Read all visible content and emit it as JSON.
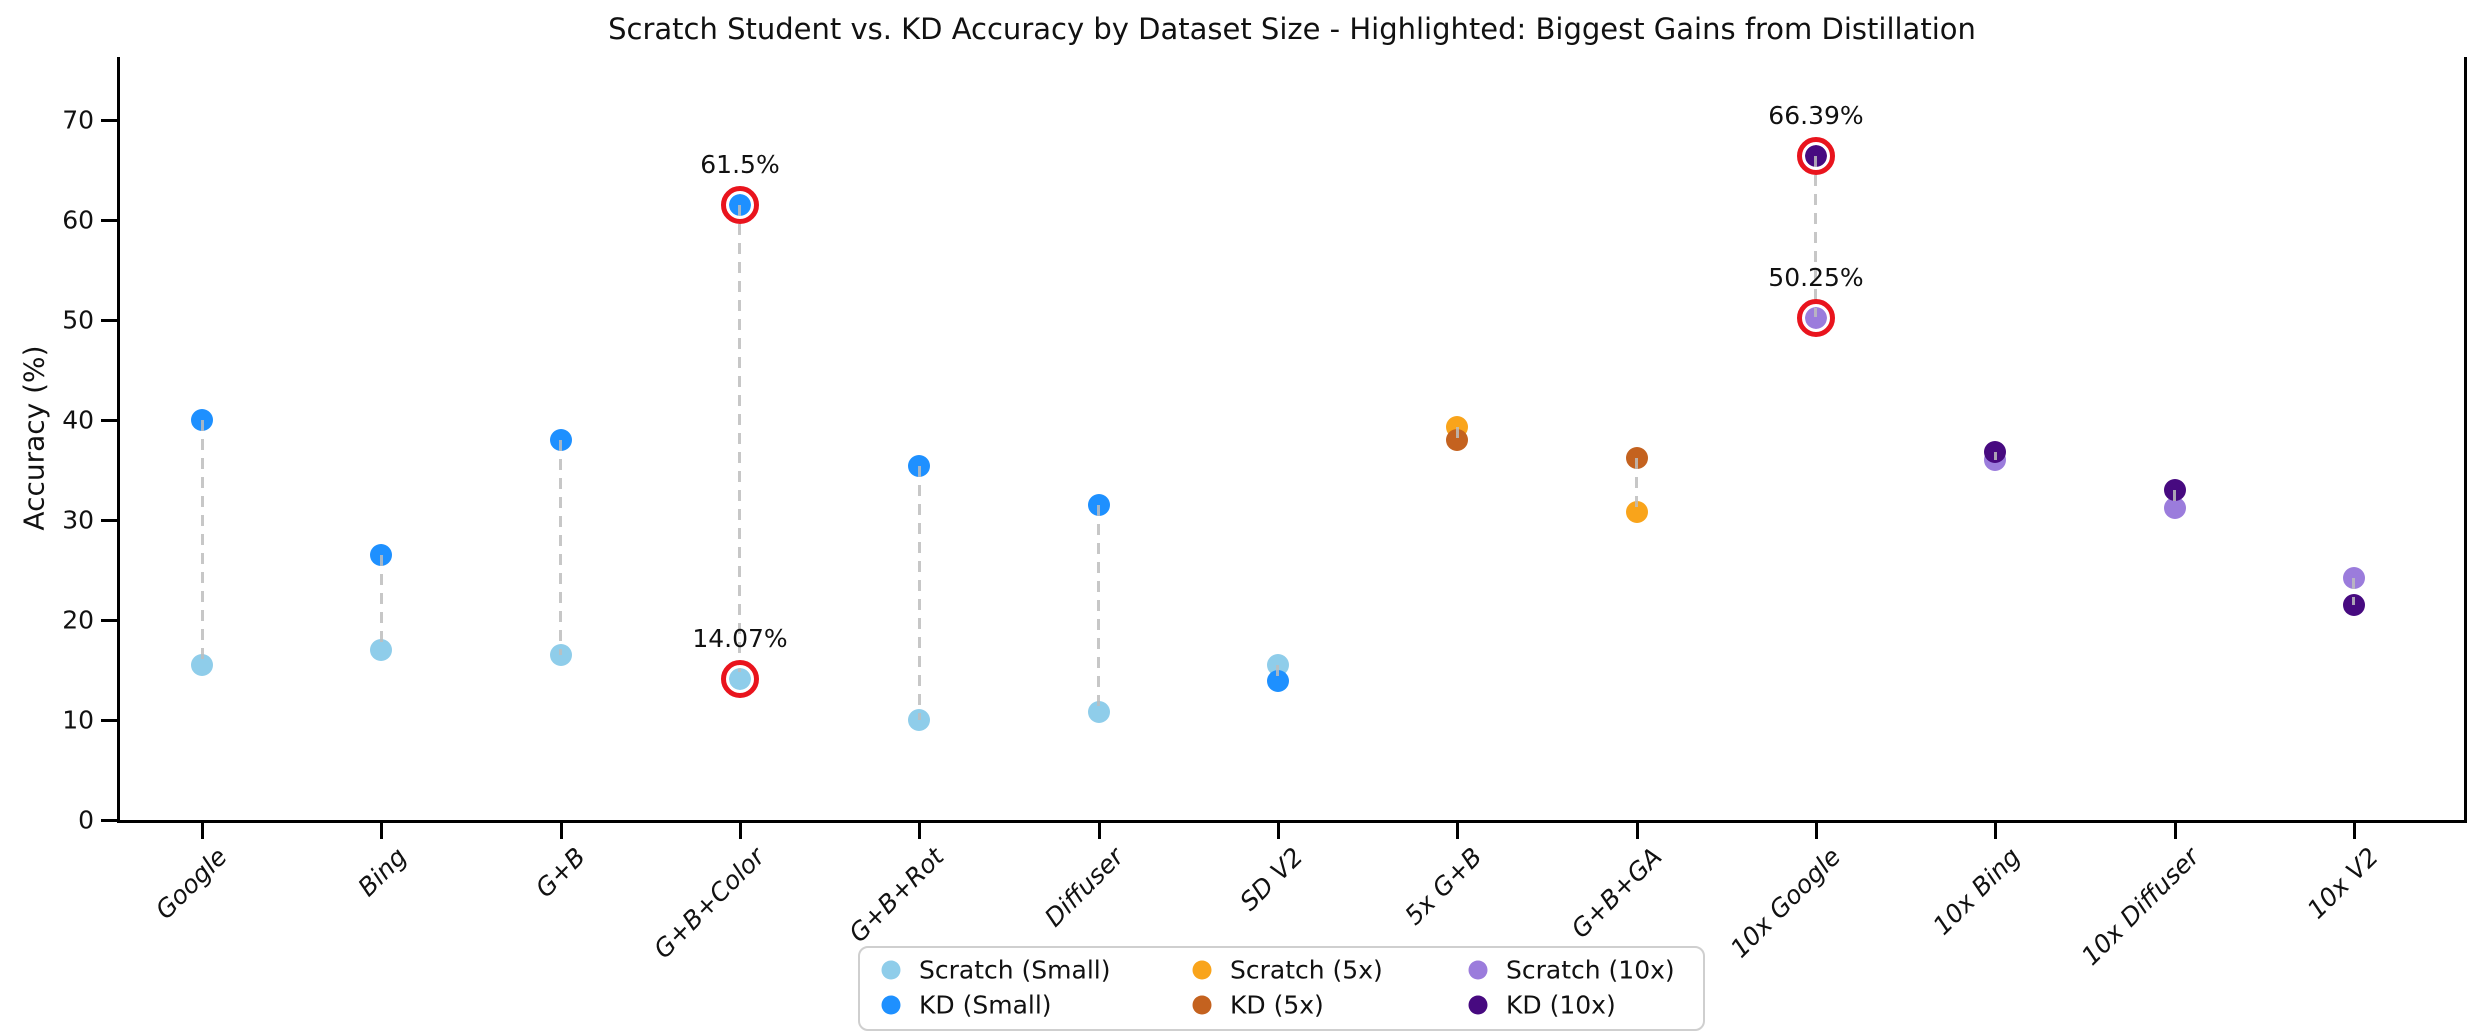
{
  "title": "Scratch Student vs. KD Accuracy by Dataset Size - Highlighted: Biggest Gains from Distillation",
  "chart_data": {
    "type": "scatter",
    "title": "Scratch Student vs. KD Accuracy by Dataset Size - Highlighted: Biggest Gains from Distillation",
    "xlabel": "",
    "ylabel": "Accuracy (%)",
    "ylim": [
      0,
      76
    ],
    "yticks": [
      0,
      10,
      20,
      30,
      40,
      50,
      60,
      70
    ],
    "grid": false,
    "legend_position": "bottom-center",
    "categories": [
      "Google",
      "Bing",
      "G+B",
      "G+B+Color",
      "G+B+Rot",
      "Diffuser",
      "SD V2",
      "5x G+B",
      "G+B+GA",
      "10x Google",
      "10x Bing",
      "10x Diffuser",
      "10x V2"
    ],
    "series": [
      {
        "name": "Scratch (Small)",
        "color": "#8FCDEA",
        "values": [
          15.5,
          17.0,
          16.5,
          14.07,
          10.0,
          10.8,
          15.5,
          null,
          null,
          null,
          null,
          null,
          null
        ]
      },
      {
        "name": "KD (Small)",
        "color": "#1E90FF",
        "values": [
          40.0,
          26.5,
          38.0,
          61.5,
          35.4,
          31.5,
          13.9,
          null,
          null,
          null,
          null,
          null,
          null
        ]
      },
      {
        "name": "Scratch (5x)",
        "color": "#F9A41B",
        "values": [
          null,
          null,
          null,
          null,
          null,
          null,
          null,
          39.3,
          30.8,
          null,
          null,
          null,
          null
        ]
      },
      {
        "name": "KD (5x)",
        "color": "#C4621F",
        "values": [
          null,
          null,
          null,
          null,
          null,
          null,
          null,
          38.0,
          36.2,
          null,
          null,
          null,
          null
        ]
      },
      {
        "name": "Scratch (10x)",
        "color": "#9B7CDC",
        "values": [
          null,
          null,
          null,
          null,
          null,
          null,
          null,
          null,
          null,
          50.25,
          36.0,
          31.2,
          24.2
        ]
      },
      {
        "name": "KD (10x)",
        "color": "#470A80",
        "values": [
          null,
          null,
          null,
          null,
          null,
          null,
          null,
          null,
          null,
          66.39,
          36.8,
          33.0,
          21.5
        ]
      }
    ],
    "connector_color": "#BDBDBD",
    "highlight_color": "#E9141D",
    "annotations": [
      {
        "category": "G+B+Color",
        "series": "KD (Small)",
        "text": "61.5%"
      },
      {
        "category": "G+B+Color",
        "series": "Scratch (Small)",
        "text": "14.07%"
      },
      {
        "category": "10x Google",
        "series": "KD (10x)",
        "text": "66.39%"
      },
      {
        "category": "10x Google",
        "series": "Scratch (10x)",
        "text": "50.25%"
      }
    ]
  }
}
